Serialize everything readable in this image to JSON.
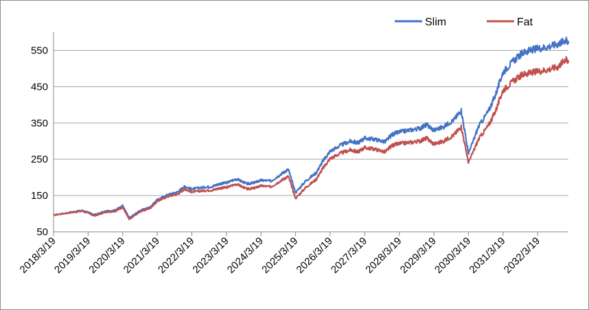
{
  "chart_data": {
    "type": "line",
    "title": "",
    "xlabel": "",
    "ylabel": "",
    "ylim": [
      50,
      600
    ],
    "yticks": [
      50,
      150,
      250,
      350,
      450,
      550
    ],
    "ytick_labels": [
      "50",
      "150",
      "250",
      "350",
      "450",
      "550"
    ],
    "xtick_labels": [
      "2018/3/19",
      "2019/3/19",
      "2020/3/19",
      "2021/3/19",
      "2022/3/19",
      "2023/3/19",
      "2024/3/19",
      "2025/3/19",
      "2026/3/19",
      "2027/3/19",
      "2028/3/19",
      "2029/3/19",
      "2030/3/19",
      "2031/3/19",
      "2032/3/19"
    ],
    "x": [
      2018.21,
      2018.7,
      2019.05,
      2019.4,
      2019.7,
      2020.0,
      2020.21,
      2020.4,
      2020.7,
      2021.0,
      2021.21,
      2021.5,
      2021.8,
      2022.0,
      2022.21,
      2022.5,
      2022.8,
      2023.0,
      2023.21,
      2023.5,
      2023.8,
      2024.0,
      2024.21,
      2024.5,
      2024.8,
      2025.0,
      2025.21,
      2025.5,
      2025.8,
      2026.0,
      2026.21,
      2026.5,
      2026.8,
      2027.0,
      2027.21,
      2027.5,
      2027.8,
      2028.0,
      2028.21,
      2028.5,
      2028.8,
      2029.0,
      2029.21,
      2029.5,
      2029.8,
      2030.0,
      2030.21,
      2030.5,
      2030.8,
      2031.0,
      2031.21,
      2031.5,
      2031.8,
      2032.0,
      2032.21,
      2032.5,
      2032.8,
      2033.0,
      2033.1
    ],
    "series": [
      {
        "name": "Slim",
        "color": "#4472C4",
        "values": [
          96,
          104,
          109,
          97,
          106,
          110,
          122,
          88,
          108,
          118,
          138,
          152,
          160,
          175,
          168,
          172,
          175,
          182,
          185,
          196,
          182,
          185,
          192,
          190,
          210,
          222,
          158,
          190,
          212,
          245,
          272,
          288,
          300,
          295,
          308,
          305,
          298,
          318,
          325,
          330,
          335,
          345,
          330,
          340,
          360,
          385,
          265,
          340,
          385,
          430,
          490,
          520,
          545,
          550,
          555,
          560,
          568,
          578,
          575
        ]
      },
      {
        "name": "Fat",
        "color": "#C0504D",
        "values": [
          96,
          103,
          107,
          94,
          104,
          107,
          118,
          84,
          105,
          115,
          134,
          147,
          154,
          168,
          160,
          163,
          165,
          170,
          172,
          182,
          168,
          170,
          177,
          174,
          192,
          203,
          142,
          172,
          194,
          225,
          252,
          266,
          276,
          270,
          282,
          278,
          270,
          288,
          293,
          296,
          300,
          308,
          292,
          300,
          318,
          340,
          240,
          305,
          345,
          385,
          440,
          465,
          485,
          488,
          492,
          497,
          505,
          525,
          522
        ]
      }
    ],
    "grid": true,
    "legend_position": "top-right"
  }
}
